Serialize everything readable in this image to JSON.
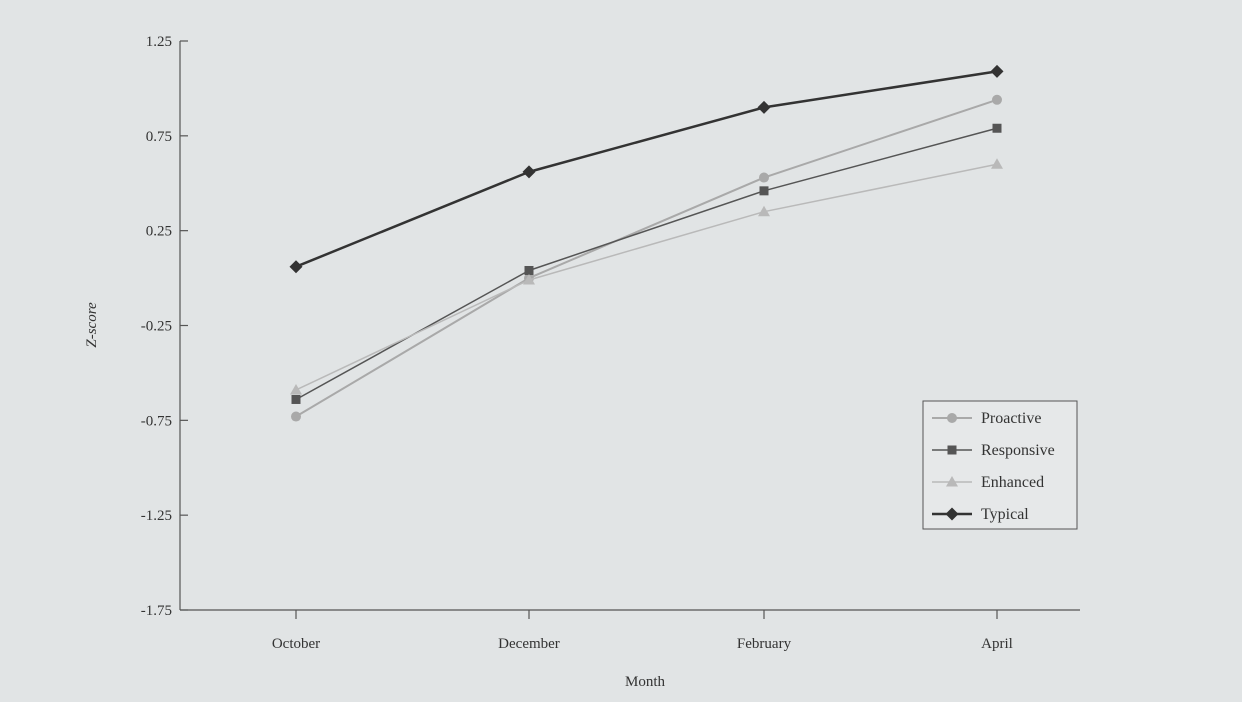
{
  "chart_data": {
    "type": "line",
    "title": "",
    "xlabel": "Month",
    "ylabel": "Z-score",
    "categories": [
      "October",
      "December",
      "February",
      "April"
    ],
    "ylim": [
      -1.75,
      1.25
    ],
    "yticks": [
      1.25,
      0.75,
      0.25,
      -0.25,
      -0.75,
      -1.25,
      -1.75
    ],
    "ytick_labels": [
      "1.25",
      "0.75",
      "0.25",
      "-0.25",
      "-0.75",
      "-1.25",
      "-1.75"
    ],
    "grid": false,
    "legend_position": "bottom-right",
    "series": [
      {
        "name": "Proactive",
        "values": [
          -0.73,
          0.0,
          0.53,
          0.94
        ],
        "marker": "circle",
        "color": "#a9a9a9",
        "width": 2
      },
      {
        "name": "Responsive",
        "values": [
          -0.64,
          0.04,
          0.46,
          0.79
        ],
        "marker": "square",
        "color": "#555555",
        "width": 1.5
      },
      {
        "name": "Enhanced",
        "values": [
          -0.59,
          -0.01,
          0.35,
          0.6
        ],
        "marker": "triangle",
        "color": "#b9b9b9",
        "width": 1.5
      },
      {
        "name": "Typical",
        "values": [
          0.06,
          0.56,
          0.9,
          1.09
        ],
        "marker": "diamond",
        "color": "#333333",
        "width": 2.5
      }
    ]
  }
}
